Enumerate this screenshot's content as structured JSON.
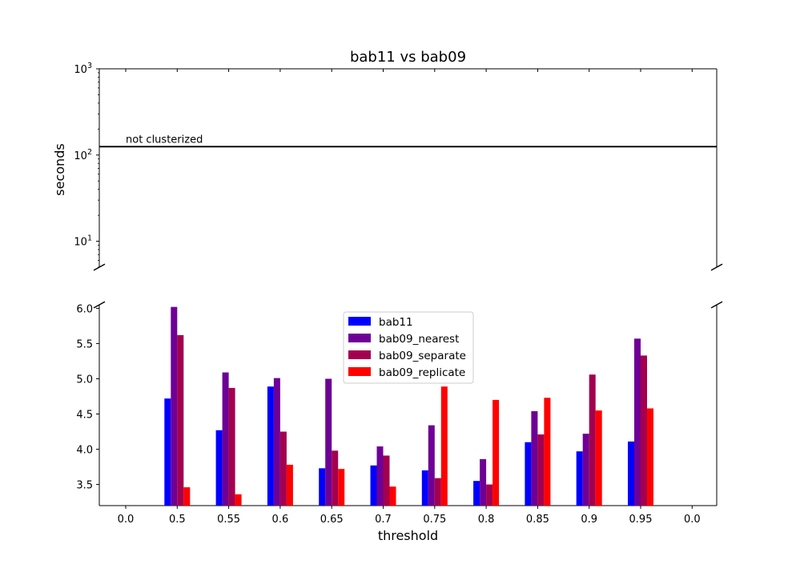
{
  "chart_data": {
    "type": "bar",
    "title": "bab11 vs bab09",
    "xlabel": "threshold",
    "ylabel": "seconds",
    "x_tick_labels": [
      "0.0",
      "0.5",
      "0.55",
      "0.6",
      "0.65",
      "0.7",
      "0.75",
      "0.8",
      "0.85",
      "0.9",
      "0.95",
      "0.0"
    ],
    "categories": [
      "0.5",
      "0.55",
      "0.6",
      "0.65",
      "0.7",
      "0.75",
      "0.8",
      "0.85",
      "0.9",
      "0.95"
    ],
    "series": [
      {
        "name": "bab11",
        "color": "#0000ff",
        "values": [
          4.72,
          4.27,
          4.89,
          3.73,
          3.77,
          3.7,
          3.55,
          4.1,
          3.97,
          4.11
        ]
      },
      {
        "name": "bab09_nearest",
        "color": "#6e0095",
        "values": [
          6.02,
          5.09,
          5.01,
          5.0,
          4.04,
          4.34,
          3.86,
          4.54,
          4.22,
          5.57
        ]
      },
      {
        "name": "bab09_separate",
        "color": "#a3004f",
        "values": [
          5.62,
          4.87,
          4.25,
          3.98,
          3.91,
          3.59,
          3.5,
          4.21,
          5.06,
          5.33
        ]
      },
      {
        "name": "bab09_replicate",
        "color": "#ff0000",
        "values": [
          3.46,
          3.36,
          3.78,
          3.72,
          3.47,
          4.89,
          4.7,
          4.73,
          4.55,
          4.58
        ]
      }
    ],
    "top_panel": {
      "yscale": "log",
      "ylim": [
        5,
        1000
      ],
      "y_ticks": [
        10,
        100,
        1000
      ],
      "y_tick_labels": [
        {
          "base": "10",
          "exp": "1"
        },
        {
          "base": "10",
          "exp": "2"
        },
        {
          "base": "10",
          "exp": "3"
        }
      ],
      "reference_line": {
        "value": 125,
        "label": "not clusterized"
      }
    },
    "bottom_panel": {
      "yscale": "linear",
      "ylim": [
        3.2,
        6.05
      ],
      "y_ticks": [
        3.5,
        4.0,
        4.5,
        5.0,
        5.5,
        6.0
      ],
      "y_tick_labels": [
        "3.5",
        "4.0",
        "4.5",
        "5.0",
        "5.5",
        "6.0"
      ]
    },
    "legend_position": "upper-center",
    "grid": false,
    "broken_axis": true
  }
}
